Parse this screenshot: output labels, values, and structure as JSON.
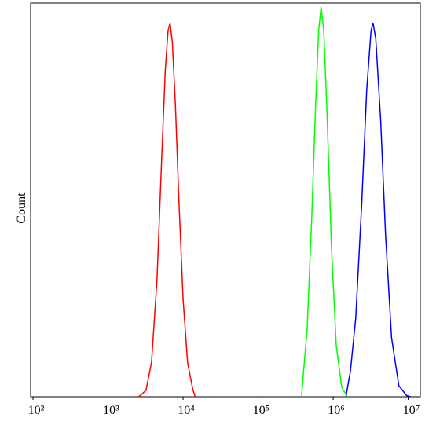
{
  "chart_data": {
    "type": "line",
    "y_label": "Count",
    "xscale": "log",
    "xlim": [
      93,
      14500000
    ],
    "ylim": [
      0,
      100
    ],
    "xticks": [
      {
        "value": 100,
        "label": "10²"
      },
      {
        "value": 1000,
        "label": "10³"
      },
      {
        "value": 10000,
        "label": "10⁴"
      },
      {
        "value": 100000,
        "label": "10⁵"
      },
      {
        "value": 1000000,
        "label": "10⁶"
      },
      {
        "value": 10000000,
        "label": "10⁷"
      }
    ],
    "series": [
      {
        "color": "#ff0000",
        "x": [
          2500,
          2600,
          3200,
          3800,
          4500,
          5200,
          5800,
          6300,
          6700,
          7200,
          7900,
          8800,
          10000,
          11500,
          13500,
          14500
        ],
        "values": [
          0,
          0.1,
          1.6,
          8.8,
          30,
          61,
          83,
          93,
          95,
          90,
          74,
          50,
          25,
          8.6,
          1.8,
          0
        ]
      },
      {
        "color": "#00ff00",
        "x": [
          380000,
          400000,
          450000,
          520000,
          580000,
          640000,
          690000,
          750000,
          830000,
          950000,
          1100000,
          1300000,
          1500000,
          1550000
        ],
        "values": [
          0,
          5.8,
          17,
          46,
          73,
          93,
          99,
          93,
          72,
          38,
          13,
          2.4,
          0.4,
          0
        ]
      },
      {
        "color": "#0000ff",
        "x": [
          1480000,
          1700000,
          2000000,
          2400000,
          2800000,
          3200000,
          3400000,
          3700000,
          4300000,
          5000000,
          6000000,
          7500000,
          9500000,
          10700000
        ],
        "values": [
          0,
          6.6,
          20,
          49,
          78,
          93,
          95,
          91,
          70,
          41,
          15,
          2.8,
          0.3,
          0
        ]
      }
    ]
  }
}
